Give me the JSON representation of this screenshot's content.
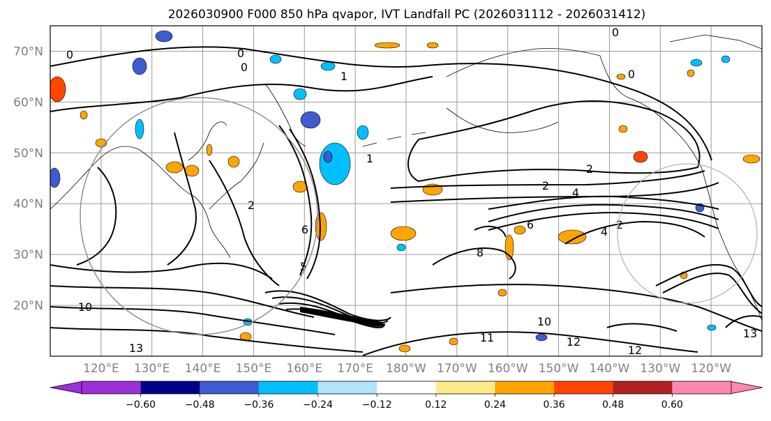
{
  "title": "2026030900 F000 850 hPa qvapor, IVT Landfall PC (2026031112 - 2026031412)",
  "map": {
    "lon_range": [
      110,
      -110
    ],
    "lat_range": [
      10,
      75
    ],
    "lat_ticks": [
      "70°N",
      "60°N",
      "50°N",
      "40°N",
      "30°N",
      "20°N"
    ],
    "lon_ticks": [
      "120°E",
      "130°E",
      "140°E",
      "150°E",
      "160°E",
      "170°E",
      "180°W",
      "170°W",
      "160°W",
      "150°W",
      "140°W",
      "130°W",
      "120°W"
    ],
    "contour_labels": [
      "0",
      "0",
      "0",
      "0",
      "0",
      "1",
      "1",
      "2",
      "2",
      "2",
      "2",
      "4",
      "4",
      "5",
      "6",
      "6",
      "8",
      "10",
      "10",
      "11",
      "12",
      "12",
      "13",
      "13"
    ]
  },
  "colorbar": {
    "ticks": [
      "-0.60",
      "-0.48",
      "-0.36",
      "-0.24",
      "-0.12",
      "0.12",
      "0.24",
      "0.36",
      "0.48",
      "0.60"
    ],
    "under_color": "#9b30d8",
    "over_color": "#ff88b0",
    "colors": [
      "#000086",
      "#3f5bd0",
      "#00bfff",
      "#b0e4ff",
      "#ffffff",
      "#ffeb8a",
      "#ffa500",
      "#ff4500",
      "#b02222"
    ]
  },
  "colors": {
    "land_line": "#000000",
    "grid": "#9a9a9a",
    "tick_text": "#808080"
  }
}
